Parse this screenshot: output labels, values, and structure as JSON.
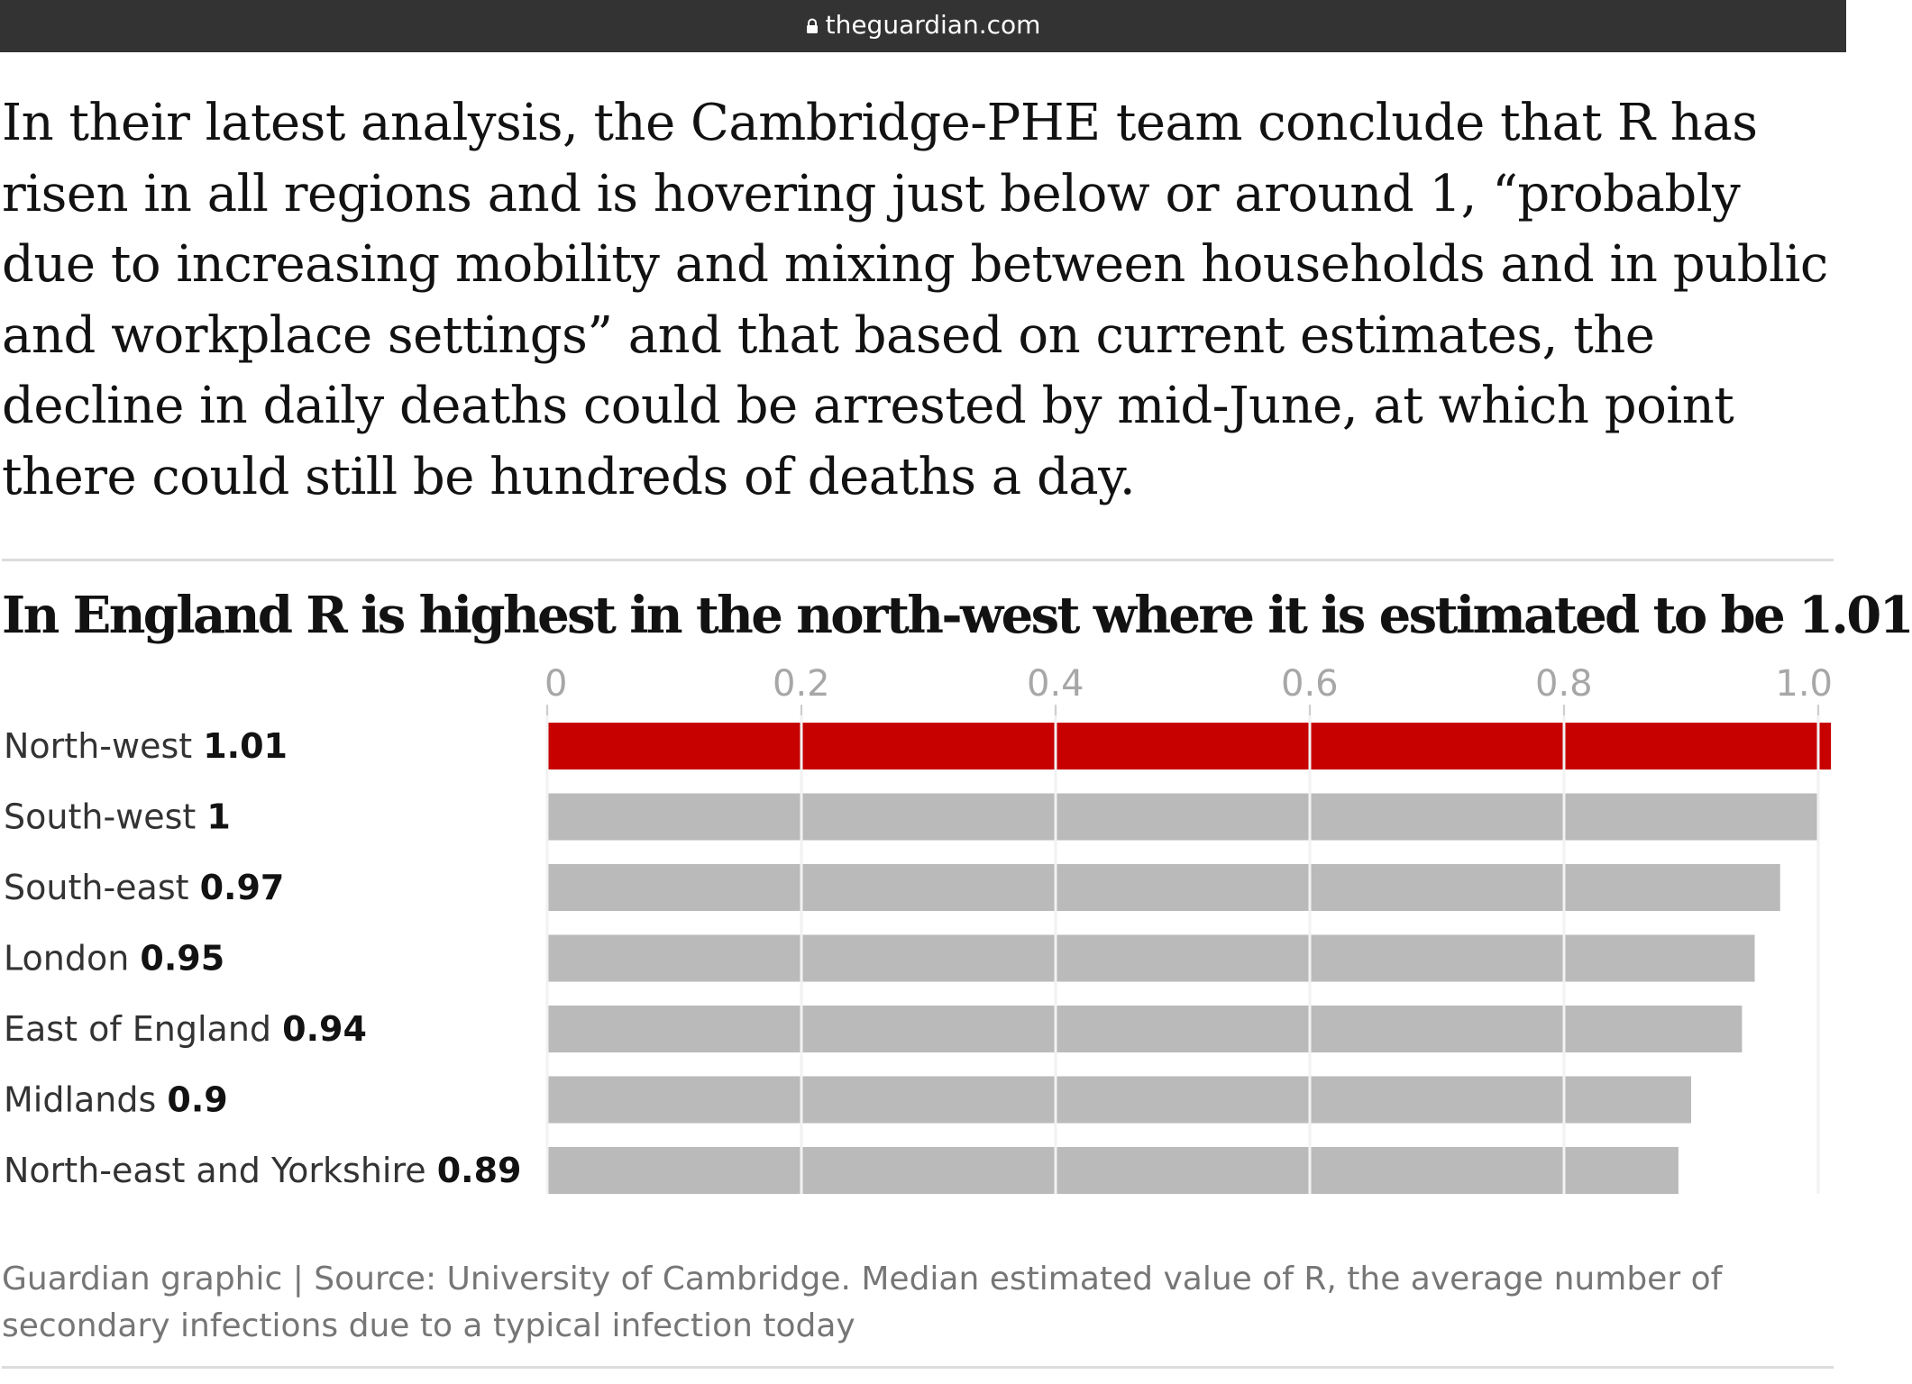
{
  "browser": {
    "url": "theguardian.com",
    "lock_icon": "lock-icon"
  },
  "article": {
    "paragraph": "In their latest analysis, the Cambridge-PHE team conclude that R has risen in all regions and is hovering just below or around 1, “probably due to increasing mobility and mixing between households and in public and workplace settings” and that based on current estimates, the decline in daily deaths could be arrested by mid-June, at which point there could still be hundreds of deaths a day."
  },
  "chart_data": {
    "type": "bar",
    "orientation": "horizontal",
    "title": "In England R is highest in the north-west where it is estimated to be 1.01",
    "categories": [
      "North-west",
      "South-west",
      "South-east",
      "London",
      "East of England",
      "Midlands",
      "North-east and Yorkshire"
    ],
    "values": [
      1.01,
      1,
      0.97,
      0.95,
      0.94,
      0.9,
      0.89
    ],
    "value_labels": [
      "1.01",
      "1",
      "0.97",
      "0.95",
      "0.94",
      "0.9",
      "0.89"
    ],
    "xticks": [
      0,
      0.2,
      0.4,
      0.6,
      0.8,
      1.0
    ],
    "xtick_labels": [
      "0",
      "0.2",
      "0.4",
      "0.6",
      "0.8",
      "1.0"
    ],
    "xlim": [
      0,
      1.01
    ],
    "xlabel": "",
    "ylabel": "",
    "grid": true,
    "highlight_index": 0,
    "colors": {
      "highlight": "#c70000",
      "bar": "#bababa",
      "gridline": "#f2f2f2",
      "tick_text": "#a7a7a7",
      "label_text": "#333333"
    }
  },
  "caption": "Guardian graphic | Source: University of Cambridge. Median estimated value of R, the average number of secondary infections due to a typical infection today"
}
